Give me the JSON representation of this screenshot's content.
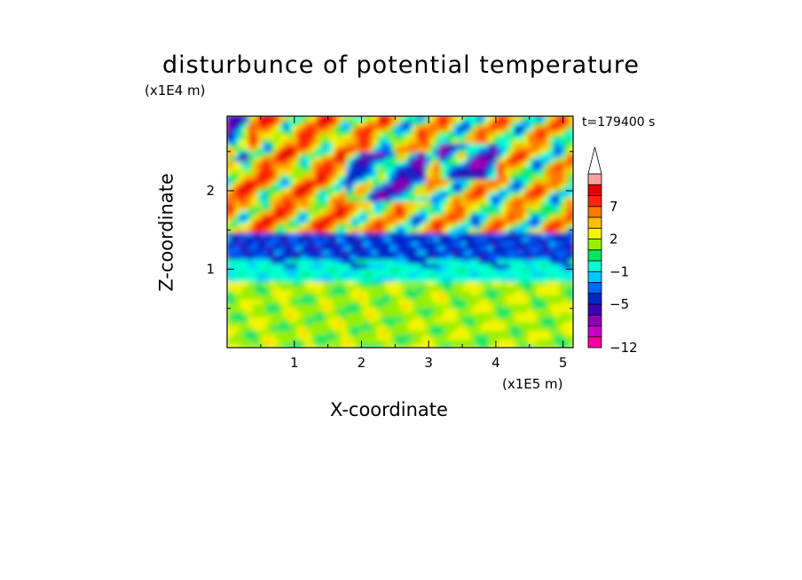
{
  "chart_data": {
    "type": "heatmap",
    "title": "disturbunce of potential temperature",
    "annotation": "t=179400 s",
    "xlabel": "X-coordinate",
    "ylabel": "Z-coordinate",
    "x_unit": "(x1E5 m)",
    "z_unit": "(x1E4 m)",
    "xlim": [
      0,
      5.15
    ],
    "zlim": [
      0,
      2.95
    ],
    "x_ticks": [
      "1",
      "2",
      "3",
      "4",
      "5"
    ],
    "z_ticks": [
      "1",
      "2"
    ],
    "colorbar": {
      "levels": [
        -12,
        -11,
        -9,
        -7,
        -5,
        -3,
        -2,
        -1,
        0,
        1,
        2,
        3,
        5,
        7,
        9,
        11
      ],
      "tick_labels": [
        "-12",
        "-5",
        "-1",
        "2",
        "7"
      ],
      "extend": "max",
      "colors": [
        "#ff00a0",
        "#c800c8",
        "#8c00b4",
        "#3c00b4",
        "#0028c8",
        "#0064ff",
        "#00c8ff",
        "#00ffd2",
        "#00e664",
        "#96f000",
        "#f5f500",
        "#ffbe00",
        "#ff7800",
        "#ff2800",
        "#e60000",
        "#ffa0a0"
      ]
    },
    "field_rows_by_height": [
      {
        "z_range": [
          0.0,
          0.9
        ],
        "dominant_levels": [
          1,
          2,
          3
        ],
        "description_level": "yellow/green"
      },
      {
        "z_range": [
          0.9,
          1.2
        ],
        "dominant_levels": [
          -2,
          -1,
          0
        ],
        "description_level": "cyan"
      },
      {
        "z_range": [
          1.2,
          1.5
        ],
        "dominant_levels": [
          -5,
          -3,
          -1
        ],
        "description_level": "blue"
      },
      {
        "z_range": [
          1.5,
          2.95
        ],
        "dominant_levels": [
          -5,
          2,
          3,
          5,
          7,
          9
        ],
        "description_level": "mixed orange/red/blue"
      }
    ]
  }
}
